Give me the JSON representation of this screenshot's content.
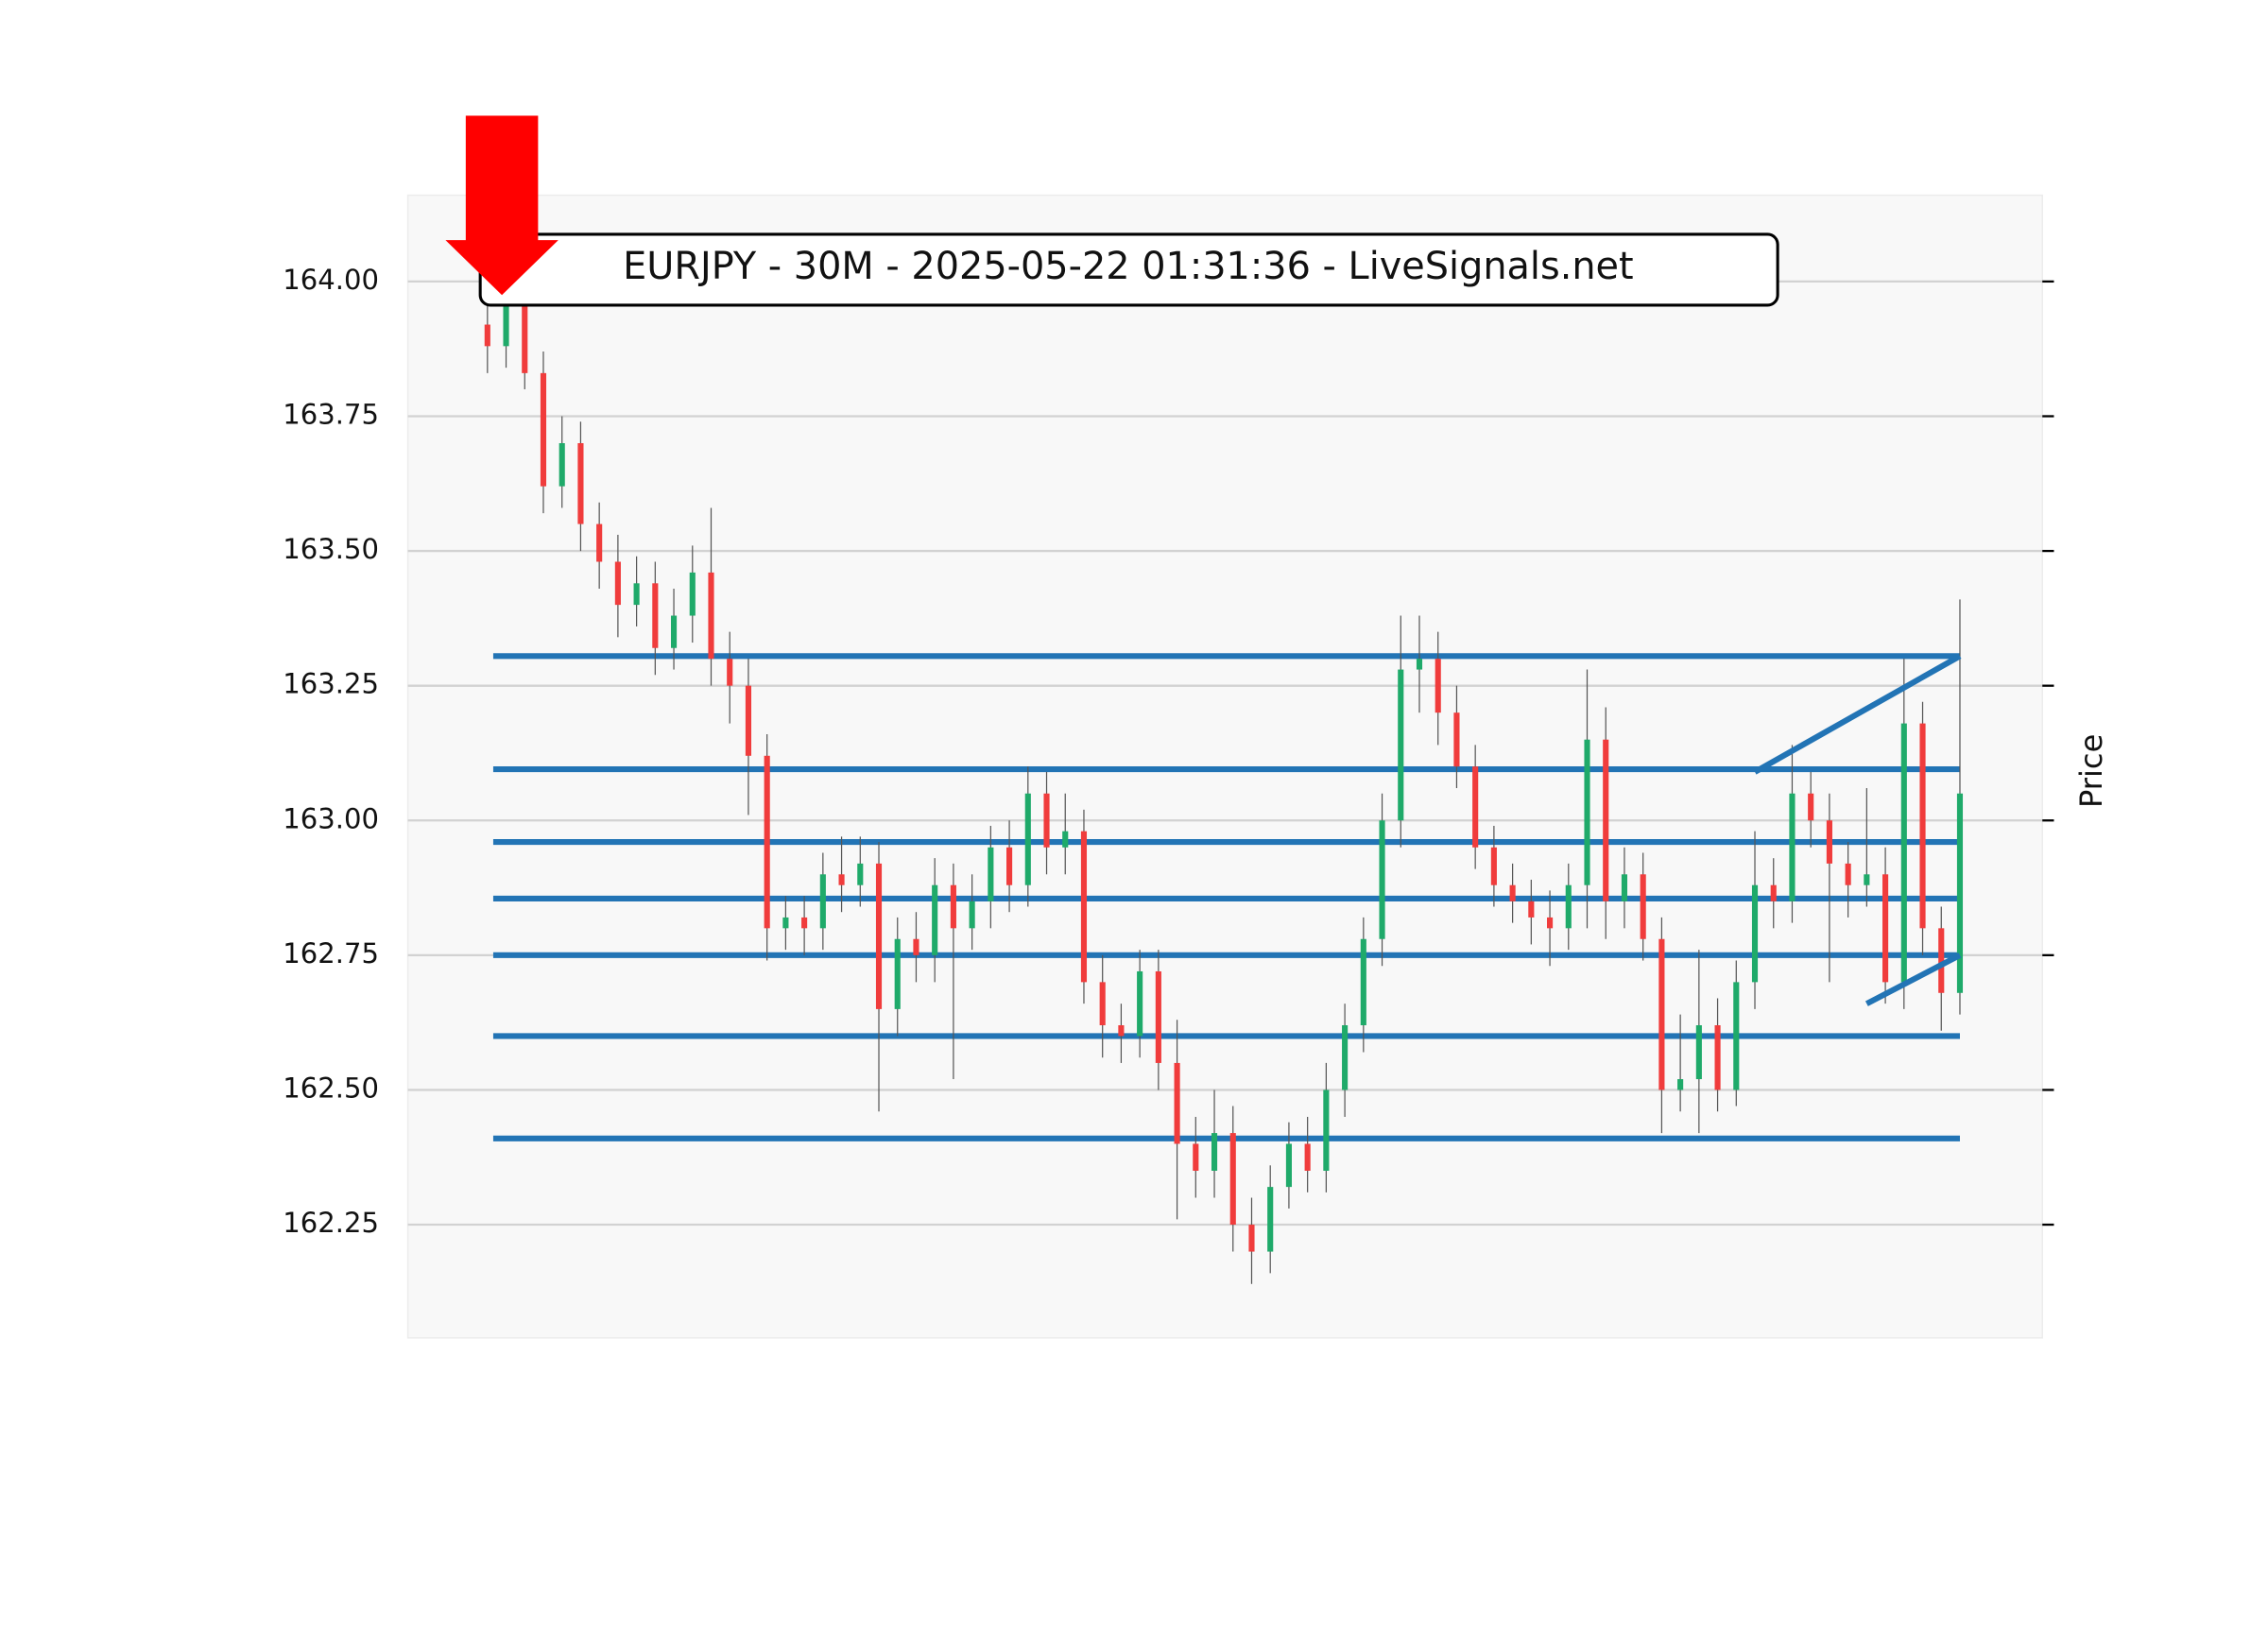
{
  "chart_data": {
    "type": "candlestick",
    "title": "EURJPY - 30M - 2025-05-22 01:31:36 - LiveSignals.net",
    "y_label": "Price",
    "ylim": [
      162.04,
      164.16
    ],
    "yticks": [
      162.25,
      {
        "value": 162.5,
        "label": "162.50"
      },
      162.75,
      {
        "value": 163,
        "label": "163.00"
      },
      163.25,
      {
        "value": 163.5,
        "label": "163.50"
      },
      163.75,
      {
        "value": 164,
        "label": "164.00"
      }
    ],
    "grid": true,
    "up_color": "#1faa6a",
    "down_color": "#f03c3c",
    "level_color": "#2274b5",
    "open": [
      163.92,
      163.88,
      163.98,
      163.83,
      163.62,
      163.7,
      163.55,
      163.48,
      163.4,
      163.44,
      163.32,
      163.38,
      163.46,
      163.3,
      163.25,
      163.12,
      162.8,
      162.82,
      162.8,
      162.9,
      162.88,
      162.92,
      162.65,
      162.78,
      162.75,
      162.88,
      162.8,
      162.85,
      162.95,
      162.88,
      163.05,
      162.95,
      162.98,
      162.7,
      162.62,
      162.6,
      162.72,
      162.55,
      162.4,
      162.35,
      162.42,
      162.25,
      162.2,
      162.32,
      162.4,
      162.35,
      162.5,
      162.62,
      162.78,
      163.0,
      163.28,
      163.3,
      163.2,
      163.1,
      162.95,
      162.88,
      162.85,
      162.82,
      162.8,
      162.88,
      163.15,
      162.85,
      162.9,
      162.78,
      162.5,
      162.52,
      162.62,
      162.5,
      162.7,
      162.88,
      162.85,
      163.05,
      163.0,
      162.92,
      162.88,
      162.9,
      162.7,
      163.18,
      162.8,
      162.68
    ],
    "high": [
      163.97,
      164.02,
      164.01,
      163.87,
      163.75,
      163.74,
      163.59,
      163.53,
      163.49,
      163.48,
      163.43,
      163.51,
      163.58,
      163.35,
      163.3,
      163.16,
      162.86,
      162.86,
      162.94,
      162.97,
      162.97,
      162.96,
      162.82,
      162.83,
      162.93,
      162.92,
      162.9,
      162.99,
      163.0,
      163.1,
      163.09,
      163.05,
      163.02,
      162.75,
      162.66,
      162.76,
      162.76,
      162.63,
      162.45,
      162.5,
      162.47,
      162.3,
      162.36,
      162.44,
      162.45,
      162.55,
      162.66,
      162.82,
      163.05,
      163.38,
      163.38,
      163.35,
      163.25,
      163.14,
      162.99,
      162.92,
      162.89,
      162.87,
      162.92,
      163.28,
      163.21,
      162.95,
      162.94,
      162.82,
      162.64,
      162.76,
      162.67,
      162.74,
      162.98,
      162.93,
      163.14,
      163.09,
      163.05,
      162.96,
      163.06,
      162.95,
      163.3,
      163.22,
      162.84,
      163.41
    ],
    "low": [
      163.83,
      163.84,
      163.8,
      163.57,
      163.58,
      163.5,
      163.43,
      163.34,
      163.36,
      163.27,
      163.28,
      163.33,
      163.25,
      163.18,
      163.01,
      162.74,
      162.76,
      162.75,
      162.76,
      162.83,
      162.84,
      162.46,
      162.6,
      162.7,
      162.7,
      162.52,
      162.76,
      162.8,
      162.83,
      162.84,
      162.9,
      162.9,
      162.66,
      162.56,
      162.55,
      162.56,
      162.5,
      162.26,
      162.3,
      162.3,
      162.2,
      162.14,
      162.16,
      162.28,
      162.31,
      162.31,
      162.45,
      162.57,
      162.73,
      162.95,
      163.2,
      163.14,
      163.06,
      162.91,
      162.84,
      162.81,
      162.77,
      162.73,
      162.76,
      162.8,
      162.78,
      162.8,
      162.74,
      162.42,
      162.46,
      162.42,
      162.46,
      162.47,
      162.65,
      162.8,
      162.81,
      162.95,
      162.7,
      162.82,
      162.84,
      162.66,
      162.65,
      162.75,
      162.61,
      162.64
    ],
    "close": [
      163.88,
      163.98,
      163.83,
      163.62,
      163.7,
      163.55,
      163.48,
      163.4,
      163.44,
      163.32,
      163.38,
      163.46,
      163.3,
      163.25,
      163.12,
      162.8,
      162.82,
      162.8,
      162.9,
      162.88,
      162.92,
      162.65,
      162.78,
      162.75,
      162.88,
      162.8,
      162.85,
      162.95,
      162.88,
      163.05,
      162.95,
      162.98,
      162.7,
      162.62,
      162.6,
      162.72,
      162.55,
      162.4,
      162.35,
      162.42,
      162.25,
      162.2,
      162.32,
      162.4,
      162.35,
      162.5,
      162.62,
      162.78,
      163.0,
      163.28,
      163.3,
      163.2,
      163.1,
      162.95,
      162.88,
      162.85,
      162.82,
      162.8,
      162.88,
      163.15,
      162.85,
      162.9,
      162.78,
      162.5,
      162.52,
      162.62,
      162.5,
      162.7,
      162.88,
      162.85,
      163.05,
      163.0,
      162.92,
      162.88,
      162.9,
      162.7,
      163.18,
      162.8,
      162.68,
      163.05
    ],
    "levels": [
      163.305,
      163.095,
      162.96,
      162.855,
      162.75,
      162.6,
      162.41
    ],
    "trend_lines": [
      {
        "start_index": 68,
        "start_value": 163.09,
        "end_index": 79,
        "end_value": 163.305
      },
      {
        "start_index": 74,
        "start_value": 162.66,
        "end_index": 79,
        "end_value": 162.75
      }
    ]
  }
}
